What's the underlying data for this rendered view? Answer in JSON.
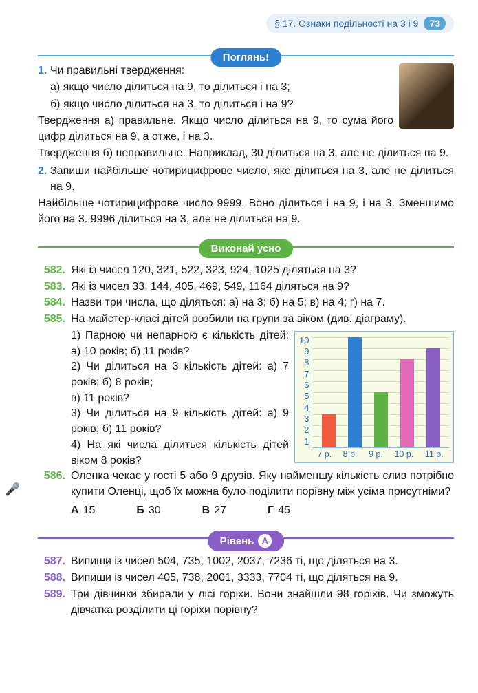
{
  "header": {
    "section_label": "§ 17. Ознаки подільності на 3 і 9",
    "page_number": "73"
  },
  "pill_look": "Поглянь!",
  "pill_oral": "Виконай усно",
  "pill_level": "Рівень",
  "level_letter": "А",
  "worked": {
    "q1_num": "1.",
    "q1_intro": "Чи правильні твердження:",
    "q1_a": "а) якщо число ділиться на 9, то ділиться і на 3;",
    "q1_b": "б) якщо число ділиться на 3, то ділиться і на 9?",
    "q1_ans1": "Твердження а) правильне. Якщо число ділиться на 9, то сума його цифр ділиться на 9, а отже, і на 3.",
    "q1_ans2": "Твердження б) неправильне. Наприклад, 30 ділиться на 3, але не ділиться на 9.",
    "q2_num": "2.",
    "q2_intro": "Запиши найбільше чотирицифрове число, яке ділиться на 3, але не ділиться на 9.",
    "q2_ans": "Найбільше чотирицифрове число 9999. Воно ділиться і на 9, і на 3. Зменшимо його на 3. 9996 ділиться на 3, але не ділиться на 9."
  },
  "exercises": {
    "e582_num": "582.",
    "e582": "Які із чисел 120, 321, 522, 323, 924, 1025 діляться на 3?",
    "e583_num": "583.",
    "e583": "Які із чисел 33, 144, 405, 469, 549, 1164 діляться на 9?",
    "e584_num": "584.",
    "e584": "Назви три числа, що діляться: а) на 3; б) на 5; в) на 4; г) на 7.",
    "e585_num": "585.",
    "e585_intro": "На майстер-класі дітей розбили на групи за віком (див. діаграму).",
    "e585_1": "1) Парною чи непарною є кіль­кість дітей: а) 10 років; б) 11 років?",
    "e585_2": "2) Чи ділиться на 3 кількість ді­тей: а) 7 років; б) 8 років;",
    "e585_2b": "в) 11 років?",
    "e585_3": "3) Чи ділиться на 9 кількість ді­тей: а) 9 років; б) 11 років?",
    "e585_4": "4) На які числа ділиться кількість дітей віком 8 років?",
    "e586_num": "586.",
    "e586": "Оленка чекає у гості 5 або 9 друзів. Яку найменшу кількість слив потрібно купити Оленці, щоб їх можна було поділити порівну між усіма присутніми?",
    "ans_A_label": "А",
    "ans_A": "15",
    "ans_B_label": "Б",
    "ans_B": "30",
    "ans_C_label": "В",
    "ans_C": "27",
    "ans_D_label": "Г",
    "ans_D": "45",
    "e587_num": "587.",
    "e587": "Випиши із чисел 504, 735, 1002, 2037, 7236 ті, що діляться на 3.",
    "e588_num": "588.",
    "e588": "Випиши із чисел 405, 738, 2001, 3333, 7704 ті, що діляться на 9.",
    "e589_num": "589.",
    "e589": "Три дівчинки збирали у лісі горіхи. Вони знайшли 98 го­ріхів. Чи зможуть дівчатка розділити ці горіхи порівну?"
  },
  "chart": {
    "y_ticks": [
      "1",
      "2",
      "3",
      "4",
      "5",
      "6",
      "7",
      "8",
      "9",
      "10"
    ],
    "x_labels": [
      "7 р.",
      "8 р.",
      "9 р.",
      "10 р.",
      "11 р."
    ],
    "values": [
      3,
      10,
      5,
      8,
      9
    ],
    "colors": [
      "#ef5a3c",
      "#2f7fd1",
      "#5fb345",
      "#e06ab5",
      "#8a5fc5"
    ],
    "max": 10
  }
}
